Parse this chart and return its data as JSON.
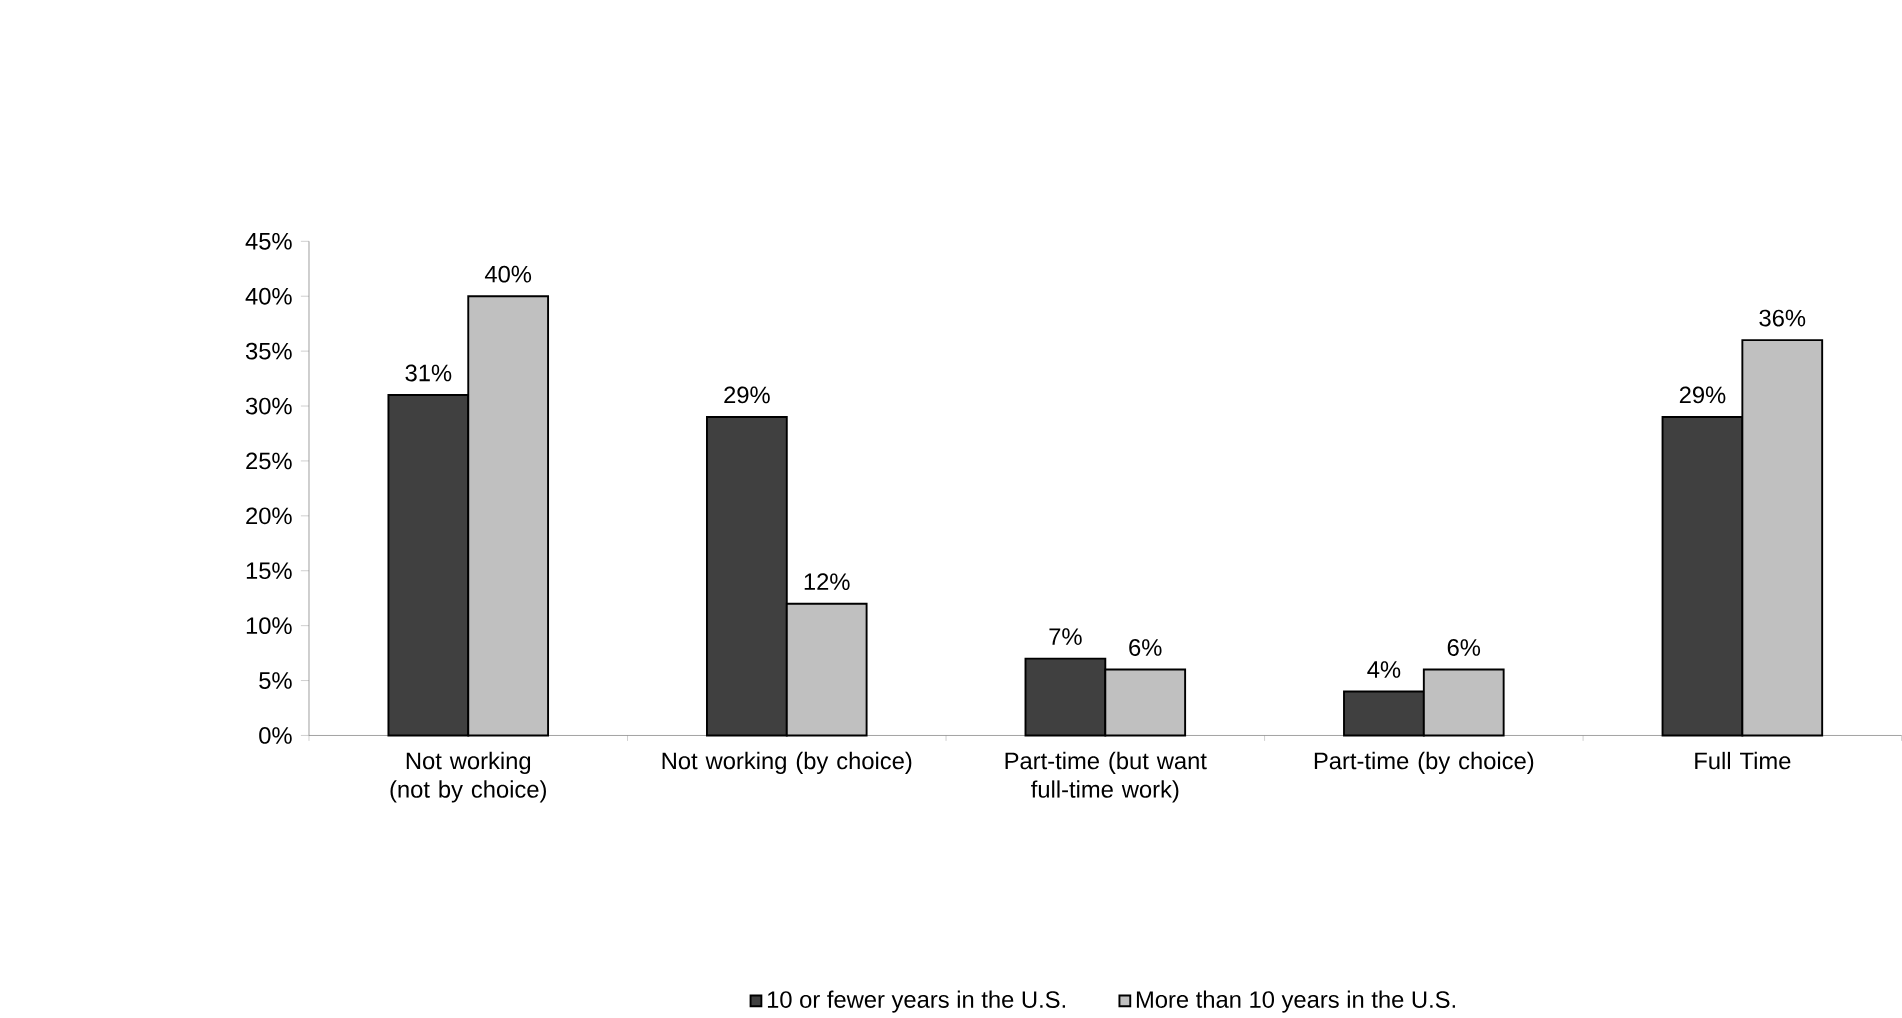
{
  "chart_data": {
    "type": "bar",
    "categories": [
      "Not working (not by choice)",
      "Not working (by choice)",
      "Part-time (but want full-time work)",
      "Part-time (by choice)",
      "Full Time"
    ],
    "series": [
      {
        "name": "10 or fewer years in the U.S.",
        "color": "#404040",
        "values": [
          31,
          29,
          7,
          4,
          29
        ],
        "value_labels": [
          "31%",
          "29%",
          "7%",
          "4%",
          "29%"
        ]
      },
      {
        "name": "More than 10 years in the U.S.",
        "color": "#c0c0c0",
        "values": [
          40,
          12,
          6,
          6,
          36
        ],
        "value_labels": [
          "40%",
          "12%",
          "6%",
          "6%",
          "36%"
        ]
      }
    ],
    "ylim": [
      0,
      45
    ],
    "yticks": [
      {
        "value": 0,
        "label": "0%"
      },
      {
        "value": 5,
        "label": "5%"
      },
      {
        "value": 10,
        "label": "10%"
      },
      {
        "value": 15,
        "label": "15%"
      },
      {
        "value": 20,
        "label": "20%"
      },
      {
        "value": 25,
        "label": "25%"
      },
      {
        "value": 30,
        "label": "30%"
      },
      {
        "value": 35,
        "label": "35%"
      },
      {
        "value": 40,
        "label": "40%"
      },
      {
        "value": 45,
        "label": "45%"
      }
    ],
    "legend": "bottom",
    "grid": false
  }
}
